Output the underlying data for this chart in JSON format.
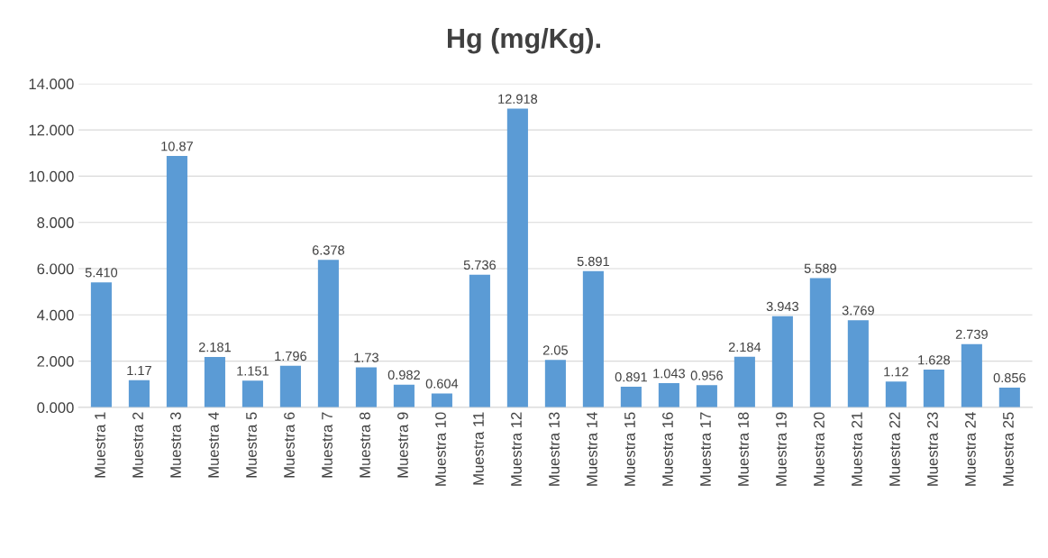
{
  "chart_data": {
    "type": "bar",
    "title": "Hg (mg/Kg).",
    "categories": [
      "Muestra 1",
      "Muestra 2",
      "Muestra 3",
      "Muestra 4",
      "Muestra 5",
      "Muestra 6",
      "Muestra 7",
      "Muestra 8",
      "Muestra 9",
      "Muestra 10",
      "Muestra 11",
      "Muestra 12",
      "Muestra 13",
      "Muestra 14",
      "Muestra 15",
      "Muestra 16",
      "Muestra 17",
      "Muestra 18",
      "Muestra 19",
      "Muestra 20",
      "Muestra 21",
      "Muestra 22",
      "Muestra 23",
      "Muestra 24",
      "Muestra 25"
    ],
    "values": [
      5.41,
      1.17,
      10.87,
      2.181,
      1.151,
      1.796,
      6.378,
      1.73,
      0.982,
      0.604,
      5.736,
      12.918,
      2.05,
      5.891,
      0.891,
      1.043,
      0.956,
      2.184,
      3.943,
      5.589,
      3.769,
      1.12,
      1.628,
      2.739,
      0.856
    ],
    "value_labels": [
      "5.410",
      "1.17",
      "10.87",
      "2.181",
      "1.151",
      "1.796",
      "6.378",
      "1.73",
      "0.982",
      "0.604",
      "5.736",
      "12.918",
      "2.05",
      "5.891",
      "0.891",
      "1.043",
      "0.956",
      "2.184",
      "3.943",
      "5.589",
      "3.769",
      "1.12",
      "1.628",
      "2.739",
      "0.856"
    ],
    "color": "#5b9bd5",
    "ylim": [
      0,
      14
    ],
    "yticks": [
      {
        "value": 0,
        "label": "0.000"
      },
      {
        "value": 2,
        "label": "2.000"
      },
      {
        "value": 4,
        "label": "4.000"
      },
      {
        "value": 6,
        "label": "6.000"
      },
      {
        "value": 8,
        "label": "8.000"
      },
      {
        "value": 10,
        "label": "10.000"
      },
      {
        "value": 12,
        "label": "12.000"
      },
      {
        "value": 14,
        "label": "14.000"
      }
    ],
    "grid": "y"
  }
}
